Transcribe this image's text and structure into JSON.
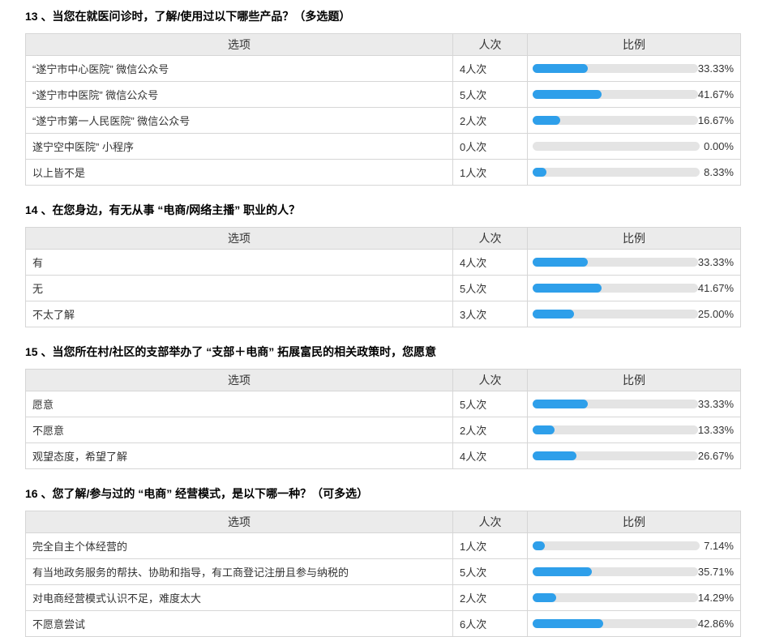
{
  "colors": {
    "bar_fill": "#2e9fea",
    "bar_track": "#e4e4e4",
    "header_bg": "#ebebeb",
    "border": "#d6d6d6"
  },
  "table_headers": {
    "option": "选项",
    "count": "人次",
    "ratio": "比例"
  },
  "questions": [
    {
      "title": "13 、当您在就医问诊时，了解/使用过以下哪些产品？（多选题）",
      "rows": [
        {
          "option": "“遂宁市中心医院” 微信公众号",
          "count_label": "4人次",
          "percent_label": "33.33%",
          "percent_value": 33.33
        },
        {
          "option": "“遂宁市中医院” 微信公众号",
          "count_label": "5人次",
          "percent_label": "41.67%",
          "percent_value": 41.67
        },
        {
          "option": "“遂宁市第一人民医院” 微信公众号",
          "count_label": "2人次",
          "percent_label": "16.67%",
          "percent_value": 16.67
        },
        {
          "option": "遂宁空中医院” 小程序",
          "count_label": "0人次",
          "percent_label": "0.00%",
          "percent_value": 0
        },
        {
          "option": "以上皆不是",
          "count_label": "1人次",
          "percent_label": "8.33%",
          "percent_value": 8.33
        }
      ]
    },
    {
      "title": "14 、在您身边，有无从事 “电商/网络主播” 职业的人？",
      "rows": [
        {
          "option": "有",
          "count_label": "4人次",
          "percent_label": "33.33%",
          "percent_value": 33.33
        },
        {
          "option": "无",
          "count_label": "5人次",
          "percent_label": "41.67%",
          "percent_value": 41.67
        },
        {
          "option": "不太了解",
          "count_label": "3人次",
          "percent_label": "25.00%",
          "percent_value": 25
        }
      ]
    },
    {
      "title": "15 、当您所在村/社区的支部举办了 “支部＋电商” 拓展富民的相关政策时，您愿意",
      "rows": [
        {
          "option": "愿意",
          "count_label": "5人次",
          "percent_label": "33.33%",
          "percent_value": 33.33
        },
        {
          "option": "不愿意",
          "count_label": "2人次",
          "percent_label": "13.33%",
          "percent_value": 13.33
        },
        {
          "option": "观望态度，希望了解",
          "count_label": "4人次",
          "percent_label": "26.67%",
          "percent_value": 26.67
        }
      ]
    },
    {
      "title": "16 、您了解/参与过的 “电商” 经营模式，是以下哪一种？（可多选）",
      "rows": [
        {
          "option": "完全自主个体经营的",
          "count_label": "1人次",
          "percent_label": "7.14%",
          "percent_value": 7.14
        },
        {
          "option": "有当地政务服务的帮扶、协助和指导，有工商登记注册且参与纳税的",
          "count_label": "5人次",
          "percent_label": "35.71%",
          "percent_value": 35.71
        },
        {
          "option": "对电商经营模式认识不足，难度太大",
          "count_label": "2人次",
          "percent_label": "14.29%",
          "percent_value": 14.29
        },
        {
          "option": "不愿意尝试",
          "count_label": "6人次",
          "percent_label": "42.86%",
          "percent_value": 42.86
        }
      ]
    }
  ]
}
